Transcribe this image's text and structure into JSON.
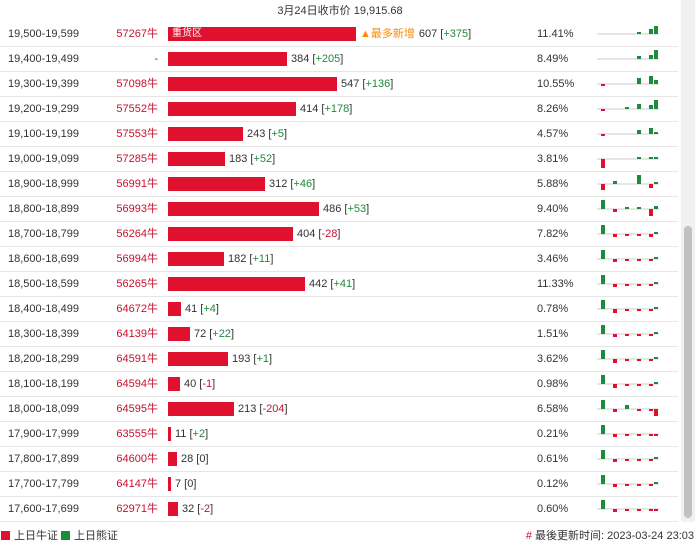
{
  "title": "3月24日收市价 19,915.68",
  "hot_zone_label": "重货区",
  "hot_tag": "▲最多新增",
  "colors": {
    "bull": "#e0102f",
    "bear": "#1e8a3c",
    "price": "#c8102e"
  },
  "legend": {
    "bull_label": "上日牛证",
    "bear_label": "上日熊证"
  },
  "updated": {
    "marker": "#",
    "text": "最後更新时间: 2023-03-24 23:03"
  },
  "rows": [
    {
      "range": "19,500-19,599",
      "price": "57267牛",
      "count": "607",
      "change": "+375",
      "pct": "11.41%",
      "hot": true,
      "spark": [
        0,
        0,
        0,
        0.2,
        0.45,
        0.8
      ]
    },
    {
      "range": "19,400-19,499",
      "price": "-",
      "count": "384",
      "change": "+205",
      "pct": "8.49%",
      "hot": false,
      "spark": [
        0,
        0,
        0,
        0.3,
        0.35,
        0.85
      ]
    },
    {
      "range": "19,300-19,399",
      "price": "57098牛",
      "count": "547",
      "change": "+136",
      "pct": "10.55%",
      "hot": false,
      "spark": [
        -0.15,
        0,
        0,
        0.55,
        0.75,
        0.35
      ]
    },
    {
      "range": "19,200-19,299",
      "price": "57552牛",
      "count": "414",
      "change": "+178",
      "pct": "8.26%",
      "hot": false,
      "spark": [
        -0.1,
        0,
        0.15,
        0.5,
        0.4,
        0.9
      ]
    },
    {
      "range": "19,100-19,199",
      "price": "57553牛",
      "count": "243",
      "change": "+5",
      "pct": "4.57%",
      "hot": false,
      "spark": [
        -0.2,
        0,
        0,
        0.35,
        0.55,
        0.1
      ]
    },
    {
      "range": "19,000-19,099",
      "price": "57285牛",
      "count": "183",
      "change": "+52",
      "pct": "3.81%",
      "hot": false,
      "spark": [
        -0.85,
        0,
        0,
        0.1,
        0.15,
        0.1
      ]
    },
    {
      "range": "18,900-18,999",
      "price": "56991牛",
      "count": "312",
      "change": "+46",
      "pct": "5.88%",
      "hot": false,
      "spark": [
        -0.55,
        0.25,
        0,
        0.9,
        -0.4,
        0.1
      ]
    },
    {
      "range": "18,800-18,899",
      "price": "56993牛",
      "count": "486",
      "change": "+53",
      "pct": "9.40%",
      "hot": false,
      "spark": [
        0.9,
        -0.25,
        0.15,
        0.1,
        -0.65,
        0.3
      ]
    },
    {
      "range": "18,700-18,799",
      "price": "56264牛",
      "count": "404",
      "change": "-28",
      "pct": "7.82%",
      "hot": false,
      "spark": [
        0.9,
        -0.25,
        -0.15,
        -0.1,
        -0.3,
        0.1
      ]
    },
    {
      "range": "18,600-18,699",
      "price": "56994牛",
      "count": "182",
      "change": "+11",
      "pct": "3.46%",
      "hot": false,
      "spark": [
        0.9,
        -0.3,
        -0.1,
        -0.15,
        -0.1,
        0.1
      ]
    },
    {
      "range": "18,500-18,599",
      "price": "56265牛",
      "count": "442",
      "change": "+41",
      "pct": "11.33%",
      "hot": false,
      "spark": [
        0.9,
        -0.3,
        -0.15,
        -0.2,
        -0.1,
        0.1
      ]
    },
    {
      "range": "18,400-18,499",
      "price": "64672牛",
      "count": "41",
      "change": "+4",
      "pct": "0.78%",
      "hot": false,
      "spark": [
        0.9,
        -0.4,
        -0.15,
        -0.15,
        -0.1,
        0.05
      ]
    },
    {
      "range": "18,300-18,399",
      "price": "64139牛",
      "count": "72",
      "change": "+22",
      "pct": "1.51%",
      "hot": false,
      "spark": [
        0.9,
        -0.3,
        -0.15,
        -0.15,
        -0.1,
        0.1
      ]
    },
    {
      "range": "18,200-18,299",
      "price": "64591牛",
      "count": "193",
      "change": "+1",
      "pct": "3.62%",
      "hot": false,
      "spark": [
        0.9,
        -0.35,
        -0.15,
        -0.2,
        -0.1,
        0.05
      ]
    },
    {
      "range": "18,100-18,199",
      "price": "64594牛",
      "count": "40",
      "change": "-1",
      "pct": "0.98%",
      "hot": false,
      "spark": [
        0.9,
        -0.35,
        -0.15,
        -0.2,
        -0.1,
        0.05
      ]
    },
    {
      "range": "18,000-18,099",
      "price": "64595牛",
      "count": "213",
      "change": "-204",
      "pct": "6.58%",
      "hot": false,
      "spark": [
        0.9,
        -0.25,
        0.35,
        -0.2,
        -0.1,
        -0.7
      ]
    },
    {
      "range": "17,900-17,999",
      "price": "63555牛",
      "count": "11",
      "change": "+2",
      "pct": "0.21%",
      "hot": false,
      "spark": [
        0.9,
        -0.3,
        -0.15,
        -0.2,
        -0.1,
        -0.15
      ]
    },
    {
      "range": "17,800-17,899",
      "price": "64600牛",
      "count": "28",
      "change": "0",
      "pct": "0.61%",
      "hot": false,
      "spark": [
        0.9,
        -0.3,
        -0.15,
        -0.15,
        -0.1,
        0.05
      ]
    },
    {
      "range": "17,700-17,799",
      "price": "64147牛",
      "count": "7",
      "change": "0",
      "pct": "0.12%",
      "hot": false,
      "spark": [
        0.9,
        -0.25,
        -0.15,
        -0.15,
        -0.05,
        0.05
      ]
    },
    {
      "range": "17,600-17,699",
      "price": "62971牛",
      "count": "32",
      "change": "-2",
      "pct": "0.60%",
      "hot": false,
      "spark": [
        0.9,
        -0.25,
        -0.15,
        -0.15,
        -0.1,
        -0.05
      ]
    }
  ]
}
